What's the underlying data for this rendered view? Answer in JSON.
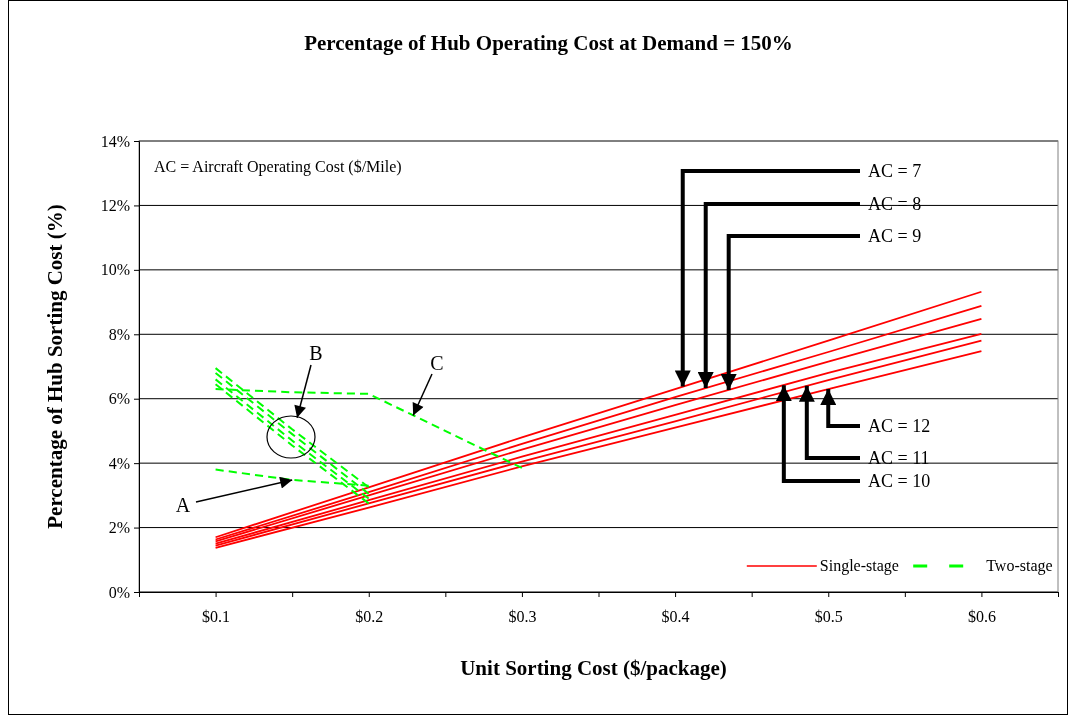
{
  "chart_data": {
    "type": "line",
    "title": "Percentage of Hub Operating Cost at Demand = 150%",
    "xlabel": "Unit Sorting Cost ($/package)",
    "ylabel": "Percentage of Hub Sorting Cost (%)",
    "x": [
      0.1,
      0.2,
      0.3,
      0.4,
      0.5,
      0.6
    ],
    "xlim": [
      0.05,
      0.65
    ],
    "xticks": [
      {
        "value": 0.05,
        "label": null
      },
      {
        "value": 0.1,
        "label": "$0.1"
      },
      {
        "value": 0.15,
        "label": null
      },
      {
        "value": 0.2,
        "label": "$0.2"
      },
      {
        "value": 0.25,
        "label": null
      },
      {
        "value": 0.3,
        "label": "$0.3"
      },
      {
        "value": 0.35,
        "label": null
      },
      {
        "value": 0.4,
        "label": "$0.4"
      },
      {
        "value": 0.45,
        "label": null
      },
      {
        "value": 0.5,
        "label": "$0.5"
      },
      {
        "value": 0.55,
        "label": null
      },
      {
        "value": 0.6,
        "label": "$0.6"
      },
      {
        "value": 0.65,
        "label": null
      }
    ],
    "ylim": [
      0,
      14
    ],
    "yticks": [
      {
        "value": 0,
        "label": "0%"
      },
      {
        "value": 2,
        "label": "2%"
      },
      {
        "value": 4,
        "label": "4%"
      },
      {
        "value": 6,
        "label": "6%"
      },
      {
        "value": 8,
        "label": "8%"
      },
      {
        "value": 10,
        "label": "10%"
      },
      {
        "value": 12,
        "label": "12%"
      },
      {
        "value": 14,
        "label": "14%"
      }
    ],
    "grid": "y",
    "legend": "bottom right",
    "marker": "none",
    "series": [
      {
        "name": "Single-stage",
        "color": "#ff0000",
        "line_style": "solid",
        "values": [
          1.7,
          3.25,
          4.8,
          6.3,
          7.8,
          9.32
        ]
      },
      {
        "color": "#ff0000",
        "line_style": "solid",
        "values": [
          1.63,
          3.1,
          4.6,
          6.05,
          7.45,
          8.88
        ]
      },
      {
        "color": "#ff0000",
        "line_style": "solid",
        "values": [
          1.57,
          3.0,
          4.42,
          5.8,
          7.15,
          8.48
        ]
      },
      {
        "color": "#ff0000",
        "line_style": "solid",
        "values": [
          1.5,
          2.85,
          4.2,
          5.5,
          6.8,
          8.01
        ]
      },
      {
        "color": "#ff0000",
        "line_style": "solid",
        "values": [
          1.44,
          2.75,
          4.05,
          5.3,
          6.58,
          7.8
        ]
      },
      {
        "color": "#ff0000",
        "line_style": "solid",
        "values": [
          1.37,
          2.62,
          3.9,
          5.1,
          6.3,
          7.48
        ]
      },
      {
        "name": "Two-stage",
        "color": "#00ff00",
        "line_style": "dashed",
        "x": [
          0.1,
          0.15,
          0.2
        ],
        "values": [
          6.95,
          5.05,
          3.25
        ]
      },
      {
        "color": "#00ff00",
        "line_style": "dashed",
        "x": [
          0.1,
          0.15,
          0.2
        ],
        "values": [
          6.8,
          4.9,
          3.05
        ]
      },
      {
        "color": "#00ff00",
        "line_style": "dashed",
        "x": [
          0.1,
          0.15,
          0.2
        ],
        "values": [
          6.6,
          4.7,
          2.9
        ]
      },
      {
        "color": "#00ff00",
        "line_style": "dashed",
        "x": [
          0.1,
          0.15,
          0.2
        ],
        "values": [
          6.45,
          4.55,
          2.75
        ]
      },
      {
        "color": "#00ff00",
        "line_style": "dashed",
        "x": [
          0.1,
          0.15,
          0.2
        ],
        "values": [
          3.8,
          3.48,
          3.3
        ]
      },
      {
        "color": "#00ff00",
        "line_style": "dashed",
        "x": [
          0.1,
          0.15,
          0.2,
          0.3
        ],
        "values": [
          6.3,
          6.2,
          6.15,
          3.85
        ]
      }
    ],
    "annotations": [
      "AC = Aircraft Operating Cost ($/Mile)",
      {
        "text": "A",
        "x": 0.15,
        "y": 3.48
      },
      "B",
      {
        "text": "C",
        "x": 0.229,
        "y": 5.48
      },
      {
        "text": "AC = 7",
        "x": 0.405,
        "y": 6.38
      },
      {
        "text": "AC = 8",
        "x": 0.42,
        "y": 6.33
      },
      {
        "text": "AC = 9",
        "x": 0.435,
        "y": 6.27
      },
      {
        "text": "AC = 10",
        "x": 0.471,
        "y": 6.42
      },
      {
        "text": "AC = 11",
        "x": 0.486,
        "y": 6.4
      },
      {
        "text": "AC = 12",
        "x": 0.5,
        "y": 6.3
      }
    ]
  }
}
